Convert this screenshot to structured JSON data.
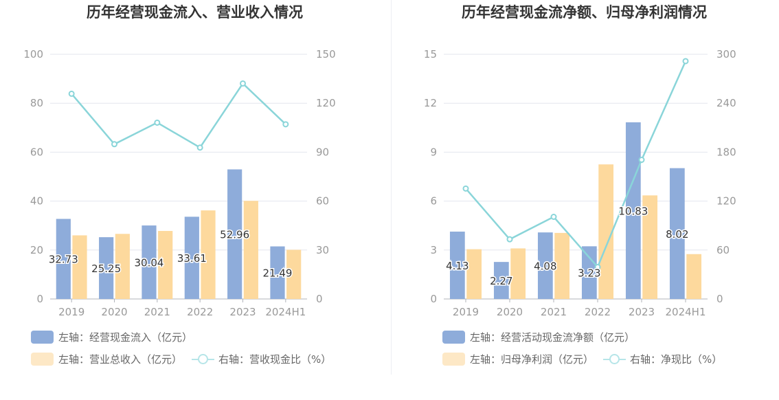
{
  "colors": {
    "bar1": "#8eacda",
    "bar2": "#fdd99d",
    "line": "#8ad5d9",
    "grid": "#e3e6ee",
    "axis": "#999999",
    "title": "#333333"
  },
  "charts": [
    {
      "title": "历年经营现金流入、营业收入情况",
      "legend": {
        "bar1": "左轴：经营现金流入（亿元）",
        "bar2": "左轴：营业总收入（亿元）",
        "line": "右轴：营收现金比（%）"
      }
    },
    {
      "title": "历年经营现金流净额、归母净利润情况",
      "legend": {
        "bar1": "左轴：经营活动现金流净额（亿元）",
        "bar2": "左轴：归母净利润（亿元）",
        "line": "右轴：净现比（%）"
      }
    }
  ],
  "chart_data": [
    {
      "type": "bar",
      "title": "历年经营现金流入、营业收入情况",
      "categories": [
        "2019",
        "2020",
        "2021",
        "2022",
        "2023",
        "2024H1"
      ],
      "left_axis": {
        "ylim": [
          0,
          100
        ],
        "ticks": [
          "0",
          "20",
          "40",
          "60",
          "80",
          "100"
        ]
      },
      "right_axis": {
        "ylim": [
          0,
          150
        ],
        "ticks": [
          "0",
          "30",
          "60",
          "90",
          "120",
          "150"
        ]
      },
      "series": [
        {
          "name": "左轴：经营现金流入（亿元）",
          "kind": "bar",
          "axis": "left",
          "values": [
            32.73,
            25.25,
            30.04,
            33.61,
            52.96,
            21.49
          ],
          "labels": [
            "32.73",
            "25.25",
            "30.04",
            "33.61",
            "52.96",
            "21.49"
          ]
        },
        {
          "name": "左轴：营业总收入（亿元）",
          "kind": "bar",
          "axis": "left",
          "values": [
            26.0,
            26.6,
            27.8,
            36.2,
            40.1,
            20.1
          ]
        },
        {
          "name": "右轴：营收现金比（%）",
          "kind": "line",
          "axis": "right",
          "values": [
            125.8,
            94.9,
            108.1,
            92.8,
            132.1,
            107.1
          ]
        }
      ],
      "grid": true,
      "legend_position": "bottom"
    },
    {
      "type": "bar",
      "title": "历年经营现金流净额、归母净利润情况",
      "categories": [
        "2019",
        "2020",
        "2021",
        "2022",
        "2023",
        "2024H1"
      ],
      "left_axis": {
        "ylim": [
          0,
          15
        ],
        "ticks": [
          "0",
          "3",
          "6",
          "9",
          "12",
          "15"
        ]
      },
      "right_axis": {
        "ylim": [
          0,
          300
        ],
        "ticks": [
          "0",
          "60",
          "120",
          "180",
          "240",
          "300"
        ]
      },
      "series": [
        {
          "name": "左轴：经营活动现金流净额（亿元）",
          "kind": "bar",
          "axis": "left",
          "values": [
            4.13,
            2.27,
            4.08,
            3.23,
            10.83,
            8.02
          ],
          "labels": [
            "4.13",
            "2.27",
            "4.08",
            "3.23",
            "10.83",
            "8.02"
          ]
        },
        {
          "name": "左轴：归母净利润（亿元）",
          "kind": "bar",
          "axis": "left",
          "values": [
            3.05,
            3.1,
            4.05,
            8.25,
            6.35,
            2.75
          ]
        },
        {
          "name": "右轴：净现比（%）",
          "kind": "line",
          "axis": "right",
          "values": [
            135.4,
            73.2,
            100.7,
            39.2,
            170.6,
            291.6
          ]
        }
      ],
      "grid": true,
      "legend_position": "bottom"
    }
  ]
}
